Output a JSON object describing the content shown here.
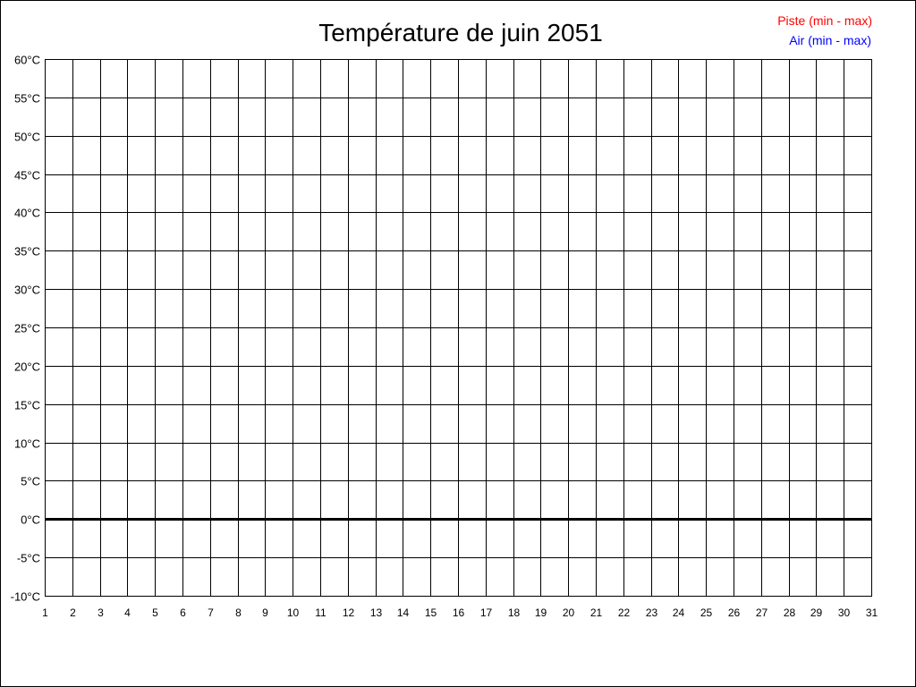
{
  "chart_data": {
    "type": "line",
    "title": "Température de juin 2051",
    "xlabel": "",
    "ylabel": "",
    "x_ticks": [
      "1",
      "2",
      "3",
      "4",
      "5",
      "6",
      "7",
      "8",
      "9",
      "10",
      "11",
      "12",
      "13",
      "14",
      "15",
      "16",
      "17",
      "18",
      "19",
      "20",
      "21",
      "22",
      "23",
      "24",
      "25",
      "26",
      "27",
      "28",
      "29",
      "30",
      "31"
    ],
    "y_ticks": [
      "60°C",
      "55°C",
      "50°C",
      "45°C",
      "40°C",
      "35°C",
      "30°C",
      "25°C",
      "20°C",
      "15°C",
      "10°C",
      "5°C",
      "0°C",
      "-5°C",
      "-10°C"
    ],
    "xlim": [
      1,
      31
    ],
    "ylim": [
      -10,
      60
    ],
    "y_step": 5,
    "grid": true,
    "legend_position": "top-right",
    "series": [
      {
        "name": "Piste (min - max)",
        "color": "#ff0000",
        "values": []
      },
      {
        "name": "Air (min - max)",
        "color": "#0000ff",
        "values": []
      }
    ]
  }
}
